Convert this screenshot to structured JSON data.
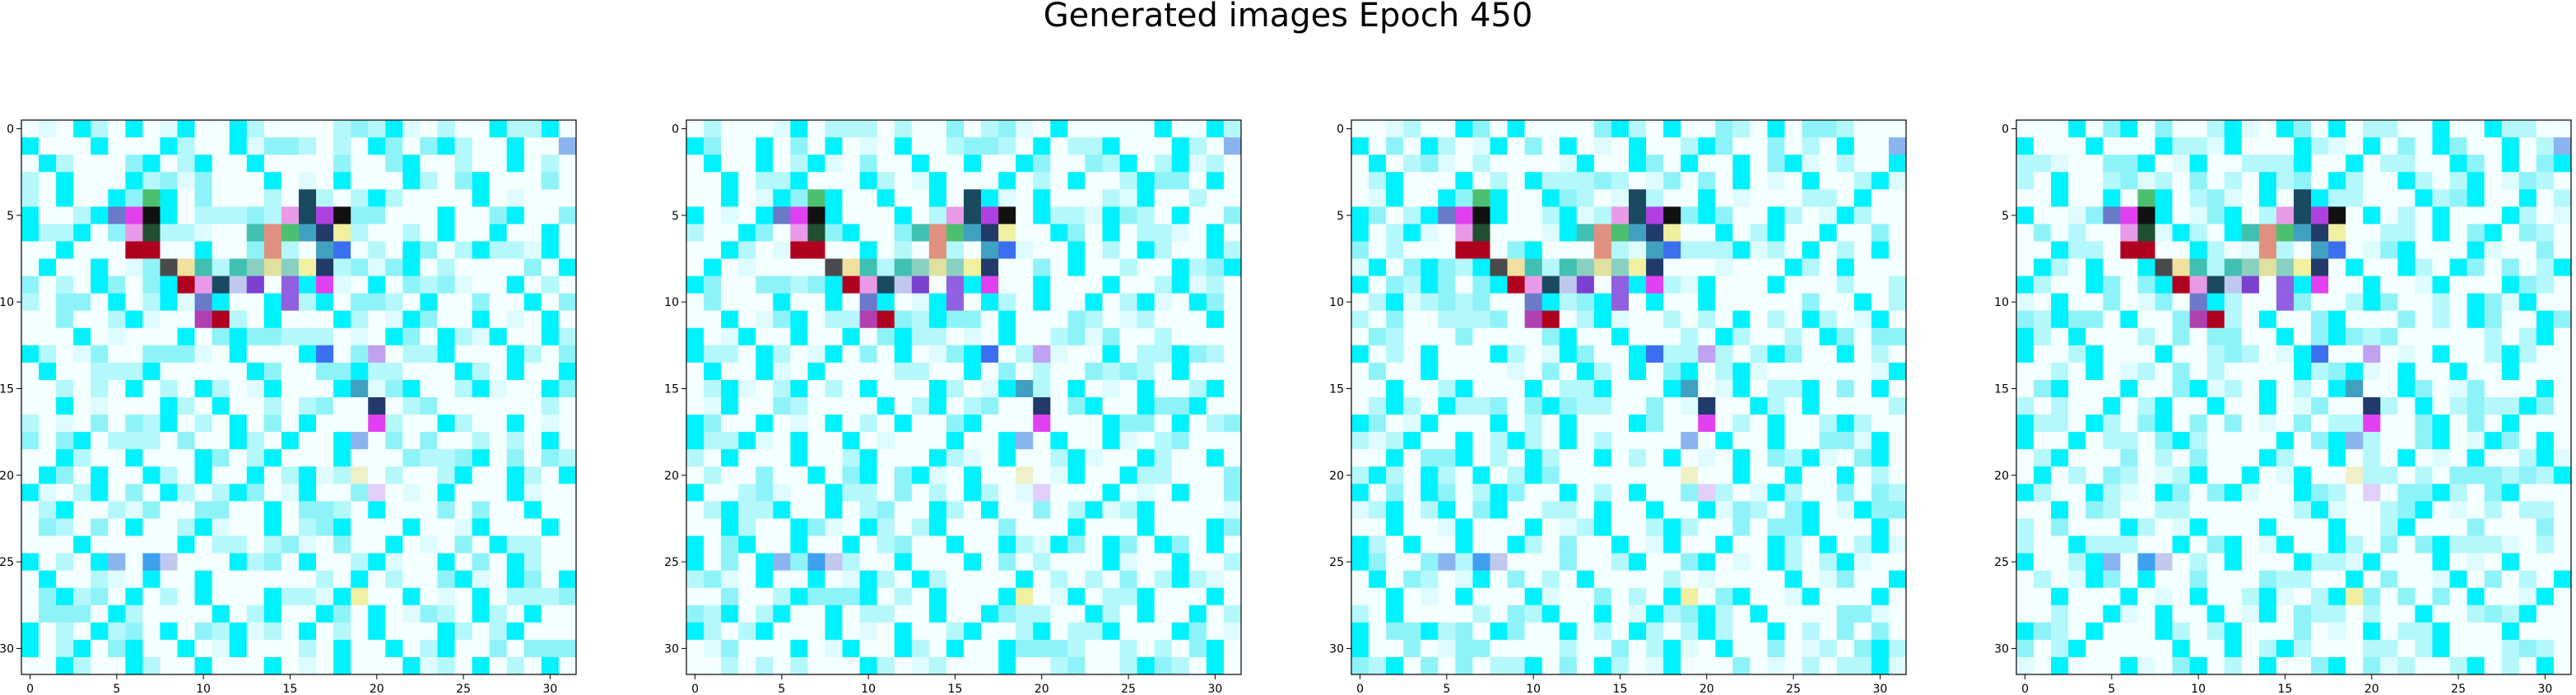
{
  "figure": {
    "title": "Generated images Epoch 450"
  },
  "chart_data": {
    "type": "heatmap",
    "title": "Generated images Epoch 450",
    "panels": 4,
    "grid_size": [
      32,
      32
    ],
    "xlim": [
      -0.5,
      31.5
    ],
    "ylim": [
      31.5,
      -0.5
    ],
    "x_ticks": [
      0,
      5,
      10,
      15,
      20,
      25,
      30
    ],
    "y_ticks": [
      0,
      5,
      10,
      15,
      20,
      25,
      30
    ],
    "colors": {
      "background": "#f4ffff",
      "cyan": "#00f2ff",
      "light_cyan": "#b4f8fb",
      "pale_cyan": "#defcfe",
      "dark_red": "#b00020",
      "magenta": "#e040f0",
      "black": "#111111",
      "green": "#4cc070",
      "dark_slate": "#1a4a60",
      "navy": "#223a6a",
      "purple": "#7a40d0",
      "violet": "#9060e0",
      "yellow_cream": "#f0f0a0",
      "blue": "#3a70f0",
      "teal": "#40c0b0",
      "pink": "#e89ae8",
      "slate_blue": "#6a7ac8",
      "dark_gray": "#4a4a4a",
      "sky_blue": "#8ab4f0"
    },
    "feature_pixels": [
      {
        "row": 1,
        "col": 31,
        "color": "#8ab4f0"
      },
      {
        "row": 4,
        "col": 7,
        "color": "#4cc070"
      },
      {
        "row": 5,
        "col": 5,
        "color": "#6a7ac8"
      },
      {
        "row": 5,
        "col": 6,
        "color": "#e040f0"
      },
      {
        "row": 5,
        "col": 7,
        "color": "#111111"
      },
      {
        "row": 6,
        "col": 6,
        "color": "#e89ae8"
      },
      {
        "row": 6,
        "col": 7,
        "color": "#1f5030"
      },
      {
        "row": 7,
        "col": 6,
        "color": "#b00020"
      },
      {
        "row": 7,
        "col": 7,
        "color": "#b00020"
      },
      {
        "row": 8,
        "col": 8,
        "color": "#4a4a4a"
      },
      {
        "row": 8,
        "col": 9,
        "color": "#f0e0a0"
      },
      {
        "row": 8,
        "col": 10,
        "color": "#40c0b0"
      },
      {
        "row": 8,
        "col": 11,
        "color": "#b4f8fb"
      },
      {
        "row": 8,
        "col": 12,
        "color": "#40c0b0"
      },
      {
        "row": 8,
        "col": 13,
        "color": "#8ad0c0"
      },
      {
        "row": 9,
        "col": 9,
        "color": "#b00020"
      },
      {
        "row": 9,
        "col": 10,
        "color": "#e89ae8"
      },
      {
        "row": 9,
        "col": 11,
        "color": "#1a4a60"
      },
      {
        "row": 9,
        "col": 12,
        "color": "#c0c8f0"
      },
      {
        "row": 9,
        "col": 13,
        "color": "#7a40d0"
      },
      {
        "row": 10,
        "col": 10,
        "color": "#6a7ac8"
      },
      {
        "row": 10,
        "col": 11,
        "color": "#00f2ff"
      },
      {
        "row": 11,
        "col": 10,
        "color": "#b040b0"
      },
      {
        "row": 11,
        "col": 11,
        "color": "#b00020"
      },
      {
        "row": 4,
        "col": 16,
        "color": "#1a4a60"
      },
      {
        "row": 5,
        "col": 14,
        "color": "#b4f8fb"
      },
      {
        "row": 5,
        "col": 15,
        "color": "#e89ae8"
      },
      {
        "row": 5,
        "col": 16,
        "color": "#1a4a60"
      },
      {
        "row": 5,
        "col": 17,
        "color": "#b040e0"
      },
      {
        "row": 5,
        "col": 18,
        "color": "#111111"
      },
      {
        "row": 6,
        "col": 13,
        "color": "#40c0b0"
      },
      {
        "row": 6,
        "col": 14,
        "color": "#e09080"
      },
      {
        "row": 6,
        "col": 15,
        "color": "#4cc070"
      },
      {
        "row": 6,
        "col": 16,
        "color": "#40a0c0"
      },
      {
        "row": 6,
        "col": 17,
        "color": "#223a6a"
      },
      {
        "row": 6,
        "col": 18,
        "color": "#f0f0a0"
      },
      {
        "row": 7,
        "col": 14,
        "color": "#e09080"
      },
      {
        "row": 7,
        "col": 15,
        "color": "#b4f8fb"
      },
      {
        "row": 7,
        "col": 17,
        "color": "#40a0c0"
      },
      {
        "row": 7,
        "col": 18,
        "color": "#3a70f0"
      },
      {
        "row": 8,
        "col": 14,
        "color": "#e0e0a0"
      },
      {
        "row": 8,
        "col": 15,
        "color": "#8ad0c0"
      },
      {
        "row": 8,
        "col": 16,
        "color": "#f0f0a0"
      },
      {
        "row": 8,
        "col": 17,
        "color": "#223a6a"
      },
      {
        "row": 9,
        "col": 15,
        "color": "#9060e0"
      },
      {
        "row": 9,
        "col": 17,
        "color": "#e040f0"
      },
      {
        "row": 10,
        "col": 15,
        "color": "#9060e0"
      },
      {
        "row": 13,
        "col": 17,
        "color": "#3a70f0"
      },
      {
        "row": 13,
        "col": 20,
        "color": "#c0a0f0"
      },
      {
        "row": 15,
        "col": 19,
        "color": "#40a0c0"
      },
      {
        "row": 16,
        "col": 20,
        "color": "#223a6a"
      },
      {
        "row": 17,
        "col": 20,
        "color": "#e040f0"
      },
      {
        "row": 18,
        "col": 19,
        "color": "#8ab4f0"
      },
      {
        "row": 20,
        "col": 19,
        "color": "#f0f0c8"
      },
      {
        "row": 21,
        "col": 20,
        "color": "#e0d0f8"
      },
      {
        "row": 25,
        "col": 5,
        "color": "#8ab4f0"
      },
      {
        "row": 25,
        "col": 7,
        "color": "#40a0f0"
      },
      {
        "row": 25,
        "col": 8,
        "color": "#c0c8f0"
      },
      {
        "row": 27,
        "col": 19,
        "color": "#f0f0a0"
      }
    ]
  }
}
